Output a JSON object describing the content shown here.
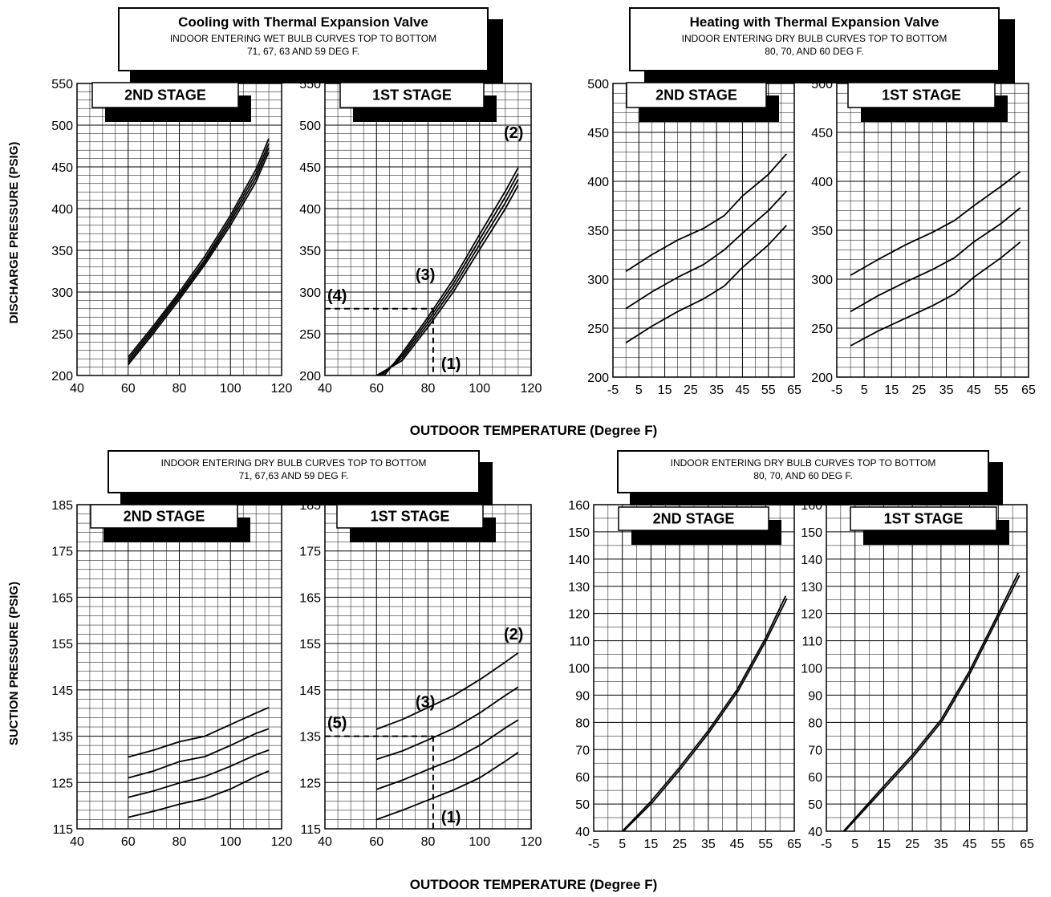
{
  "top_row": {
    "cooling_box": {
      "title": "Cooling with Thermal Expansion Valve",
      "line1": "INDOOR ENTERING WET BULB CURVES TOP TO BOTTOM",
      "line2": "71, 67, 63 AND 59 DEG F."
    },
    "heating_box": {
      "title": "Heating with Thermal Expansion Valve",
      "line1": "INDOOR ENTERING DRY BULB CURVES TOP TO BOTTOM",
      "line2": "80, 70, AND 60 DEG F."
    },
    "ylabel": "DISCHARGE PRESSURE (PSIG)",
    "xlabel": "OUTDOOR TEMPERATURE (Degree F)"
  },
  "bottom_row": {
    "cooling_box": {
      "line1": "INDOOR ENTERING DRY BULB CURVES TOP TO BOTTOM",
      "line2": "71, 67,63 AND 59 DEG F."
    },
    "heating_box": {
      "line1": "INDOOR ENTERING DRY BULB CURVES TOP TO BOTTOM",
      "line2": "80, 70, AND 60 DEG F."
    },
    "ylabel": "SUCTION PRESSURE (PSIG)",
    "xlabel": "OUTDOOR TEMPERATURE (Degree F)"
  },
  "chart_data": [
    {
      "id": "cool_dis_2nd",
      "type": "line",
      "title": "2ND STAGE",
      "x_ticks": [
        "40",
        "60",
        "80",
        "100",
        "120"
      ],
      "xlim": [
        40,
        120
      ],
      "y_ticks": [
        "200",
        "250",
        "300",
        "350",
        "400",
        "450",
        "500",
        "550"
      ],
      "ylim": [
        200,
        550
      ],
      "series": [
        {
          "values": [
            [
              60,
              222
            ],
            [
              70,
              260
            ],
            [
              80,
              300
            ],
            [
              90,
              343
            ],
            [
              100,
              392
            ],
            [
              110,
              447
            ],
            [
              115,
              484
            ]
          ]
        },
        {
          "values": [
            [
              60,
              219
            ],
            [
              70,
              257
            ],
            [
              80,
              297
            ],
            [
              90,
              339
            ],
            [
              100,
              388
            ],
            [
              110,
              442
            ],
            [
              115,
              478
            ]
          ]
        },
        {
          "values": [
            [
              60,
              216
            ],
            [
              70,
              254
            ],
            [
              80,
              294
            ],
            [
              90,
              336
            ],
            [
              100,
              384
            ],
            [
              110,
              437
            ],
            [
              115,
              473
            ]
          ]
        },
        {
          "values": [
            [
              60,
              213
            ],
            [
              70,
              251
            ],
            [
              80,
              291
            ],
            [
              90,
              333
            ],
            [
              100,
              380
            ],
            [
              110,
              432
            ],
            [
              115,
              468
            ]
          ]
        }
      ]
    },
    {
      "id": "cool_dis_1st",
      "type": "line",
      "title": "1ST STAGE",
      "x_ticks": [
        "40",
        "60",
        "80",
        "100",
        "120"
      ],
      "xlim": [
        40,
        120
      ],
      "y_ticks": [
        "200",
        "250",
        "300",
        "350",
        "400",
        "450",
        "500",
        "550"
      ],
      "ylim": [
        200,
        550
      ],
      "annotations": [
        "(1)",
        "(2)",
        "(3)",
        "(4)"
      ],
      "reference": {
        "x": 82,
        "y": 280
      },
      "series": [
        {
          "values": [
            [
              63,
              200
            ],
            [
              70,
              227
            ],
            [
              80,
              270
            ],
            [
              90,
              316
            ],
            [
              100,
              369
            ],
            [
              110,
              421
            ],
            [
              115,
              449
            ]
          ]
        },
        {
          "values": [
            [
              62,
              200
            ],
            [
              70,
              224
            ],
            [
              80,
              266
            ],
            [
              90,
              311
            ],
            [
              100,
              363
            ],
            [
              110,
              414
            ],
            [
              115,
              442
            ]
          ]
        },
        {
          "values": [
            [
              61,
              200
            ],
            [
              70,
              221
            ],
            [
              80,
              262
            ],
            [
              90,
              306
            ],
            [
              100,
              357
            ],
            [
              110,
              407
            ],
            [
              115,
              435
            ]
          ]
        },
        {
          "values": [
            [
              60,
              200
            ],
            [
              70,
              218
            ],
            [
              80,
              258
            ],
            [
              90,
              301
            ],
            [
              100,
              351
            ],
            [
              110,
              400
            ],
            [
              115,
              428
            ]
          ]
        }
      ]
    },
    {
      "id": "heat_dis_2nd",
      "type": "line",
      "title": "2ND STAGE",
      "x_ticks": [
        "-5",
        "5",
        "15",
        "25",
        "35",
        "45",
        "55",
        "65"
      ],
      "xlim": [
        -5,
        65
      ],
      "y_ticks": [
        "200",
        "250",
        "300",
        "350",
        "400",
        "450",
        "500"
      ],
      "ylim": [
        200,
        500
      ],
      "series": [
        {
          "values": [
            [
              0,
              308
            ],
            [
              10,
              325
            ],
            [
              20,
              340
            ],
            [
              30,
              352
            ],
            [
              38,
              365
            ],
            [
              45,
              385
            ],
            [
              55,
              407
            ],
            [
              62,
              428
            ]
          ]
        },
        {
          "values": [
            [
              0,
              270
            ],
            [
              10,
              287
            ],
            [
              20,
              302
            ],
            [
              30,
              315
            ],
            [
              38,
              330
            ],
            [
              45,
              347
            ],
            [
              55,
              370
            ],
            [
              62,
              390
            ]
          ]
        },
        {
          "values": [
            [
              0,
              235
            ],
            [
              10,
              252
            ],
            [
              20,
              267
            ],
            [
              30,
              280
            ],
            [
              38,
              293
            ],
            [
              45,
              312
            ],
            [
              55,
              335
            ],
            [
              62,
              355
            ]
          ]
        }
      ]
    },
    {
      "id": "heat_dis_1st",
      "type": "line",
      "title": "1ST STAGE",
      "x_ticks": [
        "-5",
        "5",
        "15",
        "25",
        "35",
        "45",
        "55",
        "65"
      ],
      "xlim": [
        -5,
        65
      ],
      "y_ticks": [
        "200",
        "250",
        "300",
        "350",
        "400",
        "450",
        "500"
      ],
      "ylim": [
        200,
        500
      ],
      "series": [
        {
          "values": [
            [
              0,
              304
            ],
            [
              10,
              320
            ],
            [
              20,
              335
            ],
            [
              30,
              348
            ],
            [
              38,
              360
            ],
            [
              45,
              375
            ],
            [
              55,
              395
            ],
            [
              62,
              410
            ]
          ]
        },
        {
          "values": [
            [
              0,
              267
            ],
            [
              10,
              283
            ],
            [
              20,
              297
            ],
            [
              30,
              310
            ],
            [
              38,
              322
            ],
            [
              45,
              338
            ],
            [
              55,
              357
            ],
            [
              62,
              373
            ]
          ]
        },
        {
          "values": [
            [
              0,
              232
            ],
            [
              10,
              247
            ],
            [
              20,
              260
            ],
            [
              30,
              273
            ],
            [
              38,
              285
            ],
            [
              45,
              302
            ],
            [
              55,
              322
            ],
            [
              62,
              338
            ]
          ]
        }
      ]
    },
    {
      "id": "cool_suc_2nd",
      "type": "line",
      "title": "2ND STAGE",
      "x_ticks": [
        "40",
        "60",
        "80",
        "100",
        "120"
      ],
      "xlim": [
        40,
        120
      ],
      "y_ticks": [
        "115",
        "125",
        "135",
        "145",
        "155",
        "165",
        "175",
        "185"
      ],
      "ylim": [
        115,
        185
      ],
      "series": [
        {
          "values": [
            [
              60,
              130.5
            ],
            [
              70,
              132
            ],
            [
              80,
              133.8
            ],
            [
              90,
              135
            ],
            [
              100,
              137.5
            ],
            [
              110,
              140
            ],
            [
              115,
              141.2
            ]
          ]
        },
        {
          "values": [
            [
              60,
              126
            ],
            [
              70,
              127.5
            ],
            [
              80,
              129.5
            ],
            [
              90,
              130.6
            ],
            [
              100,
              133
            ],
            [
              110,
              135.6
            ],
            [
              115,
              136.6
            ]
          ]
        },
        {
          "values": [
            [
              60,
              121.8
            ],
            [
              70,
              123.2
            ],
            [
              80,
              124.9
            ],
            [
              90,
              126.3
            ],
            [
              100,
              128.5
            ],
            [
              110,
              131
            ],
            [
              115,
              132
            ]
          ]
        },
        {
          "values": [
            [
              60,
              117.5
            ],
            [
              70,
              118.8
            ],
            [
              80,
              120.3
            ],
            [
              90,
              121.5
            ],
            [
              100,
              123.6
            ],
            [
              110,
              126.3
            ],
            [
              115,
              127.5
            ]
          ]
        }
      ]
    },
    {
      "id": "cool_suc_1st",
      "type": "line",
      "title": "1ST STAGE",
      "x_ticks": [
        "40",
        "60",
        "80",
        "100",
        "120"
      ],
      "xlim": [
        40,
        120
      ],
      "y_ticks": [
        "115",
        "125",
        "135",
        "145",
        "155",
        "165",
        "175",
        "185"
      ],
      "ylim": [
        115,
        185
      ],
      "annotations": [
        "(1)",
        "(2)",
        "(3)",
        "(5)"
      ],
      "reference": {
        "x": 82,
        "y": 135
      },
      "series": [
        {
          "values": [
            [
              60,
              136.5
            ],
            [
              70,
              138.6
            ],
            [
              80,
              141.2
            ],
            [
              90,
              143.8
            ],
            [
              100,
              147.2
            ],
            [
              110,
              151
            ],
            [
              115,
              153
            ]
          ]
        },
        {
          "values": [
            [
              60,
              130
            ],
            [
              70,
              131.8
            ],
            [
              80,
              134.2
            ],
            [
              90,
              136.7
            ],
            [
              100,
              140
            ],
            [
              110,
              143.8
            ],
            [
              115,
              145.6
            ]
          ]
        },
        {
          "values": [
            [
              60,
              123.5
            ],
            [
              70,
              125.5
            ],
            [
              80,
              127.8
            ],
            [
              90,
              130
            ],
            [
              100,
              133
            ],
            [
              110,
              136.8
            ],
            [
              115,
              138.5
            ]
          ]
        },
        {
          "values": [
            [
              60,
              117
            ],
            [
              70,
              119
            ],
            [
              80,
              121.2
            ],
            [
              90,
              123.4
            ],
            [
              100,
              126
            ],
            [
              110,
              129.6
            ],
            [
              115,
              131.5
            ]
          ]
        }
      ]
    },
    {
      "id": "heat_suc_2nd",
      "type": "line",
      "title": "2ND STAGE",
      "x_ticks": [
        "-5",
        "5",
        "15",
        "25",
        "35",
        "45",
        "55",
        "65"
      ],
      "xlim": [
        -5,
        65
      ],
      "y_ticks": [
        "40",
        "50",
        "60",
        "70",
        "80",
        "90",
        "100",
        "110",
        "120",
        "130",
        "140",
        "150",
        "160"
      ],
      "ylim": [
        40,
        160
      ],
      "series": [
        {
          "values": [
            [
              5,
              40
            ],
            [
              15,
              51
            ],
            [
              25,
              63.5
            ],
            [
              35,
              77
            ],
            [
              45,
              92
            ],
            [
              55,
              111
            ],
            [
              62,
              126.5
            ]
          ]
        },
        {
          "values": [
            [
              5.4,
              40
            ],
            [
              15.4,
              50.5
            ],
            [
              25.4,
              63
            ],
            [
              35.4,
              76.5
            ],
            [
              45.4,
              91.5
            ],
            [
              55.4,
              110.5
            ],
            [
              62.4,
              125.5
            ]
          ]
        }
      ]
    },
    {
      "id": "heat_suc_1st",
      "type": "line",
      "title": "1ST STAGE",
      "x_ticks": [
        "-5",
        "5",
        "15",
        "25",
        "35",
        "45",
        "55",
        "65"
      ],
      "xlim": [
        -5,
        65
      ],
      "y_ticks": [
        "40",
        "50",
        "60",
        "70",
        "80",
        "90",
        "100",
        "110",
        "120",
        "130",
        "140",
        "150",
        "160"
      ],
      "ylim": [
        40,
        160
      ],
      "series": [
        {
          "values": [
            [
              1,
              40
            ],
            [
              15,
              56.5
            ],
            [
              25,
              68
            ],
            [
              35,
              81
            ],
            [
              45,
              99
            ],
            [
              55,
              120
            ],
            [
              62,
              135
            ]
          ]
        },
        {
          "values": [
            [
              1.4,
              40
            ],
            [
              15.4,
              56
            ],
            [
              25.4,
              67.5
            ],
            [
              35.4,
              80.5
            ],
            [
              45.4,
              98.5
            ],
            [
              55.4,
              119.5
            ],
            [
              62.4,
              134
            ]
          ]
        }
      ]
    }
  ]
}
